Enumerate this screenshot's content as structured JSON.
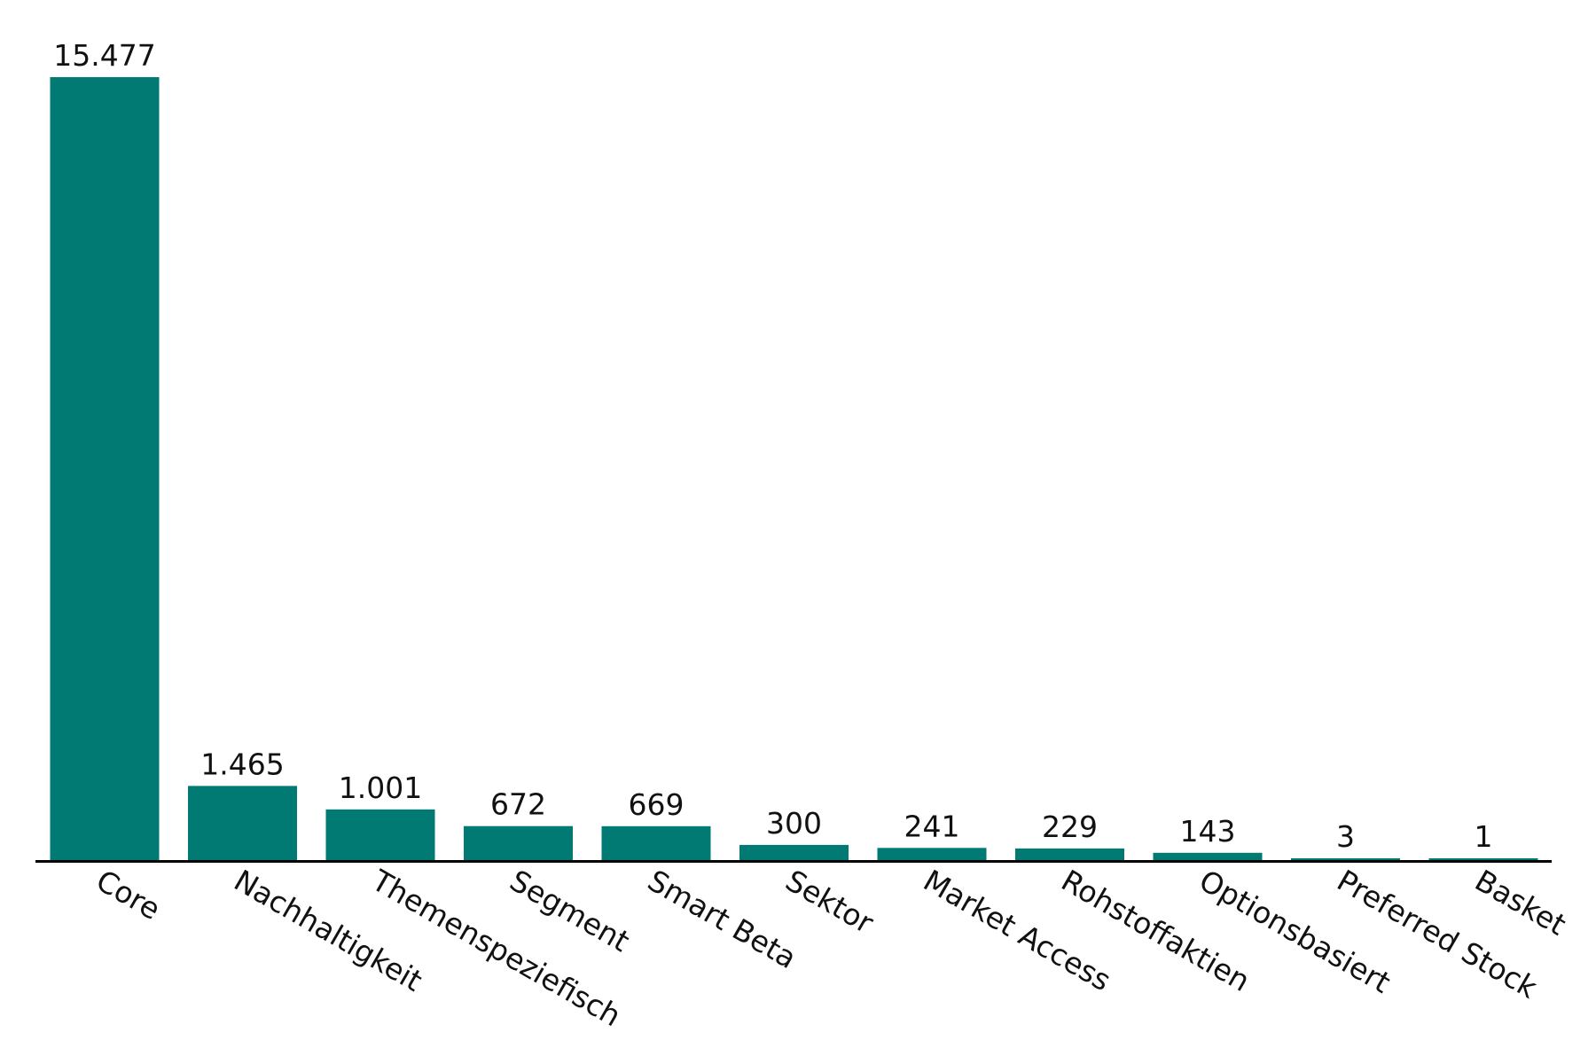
{
  "colors": {
    "bar": "#007a72",
    "axis": "#000000",
    "text": "#111111"
  },
  "chart_data": {
    "type": "bar",
    "categories": [
      "Core",
      "Nachhaltigkeit",
      "Themenspeziefisch",
      "Segment",
      "Smart Beta",
      "Sektor",
      "Market Access",
      "Rohstoffaktien",
      "Optionsbasiert",
      "Preferred Stock",
      "Basket"
    ],
    "values": [
      15477,
      1465,
      1001,
      672,
      669,
      300,
      241,
      229,
      143,
      3,
      1
    ],
    "value_labels": [
      "15.477",
      "1.465",
      "1.001",
      "672",
      "669",
      "300",
      "241",
      "229",
      "143",
      "3",
      "1"
    ],
    "title": "",
    "xlabel": "",
    "ylabel": "",
    "ylim": [
      0,
      15477
    ],
    "grid": false,
    "legend": "none"
  }
}
